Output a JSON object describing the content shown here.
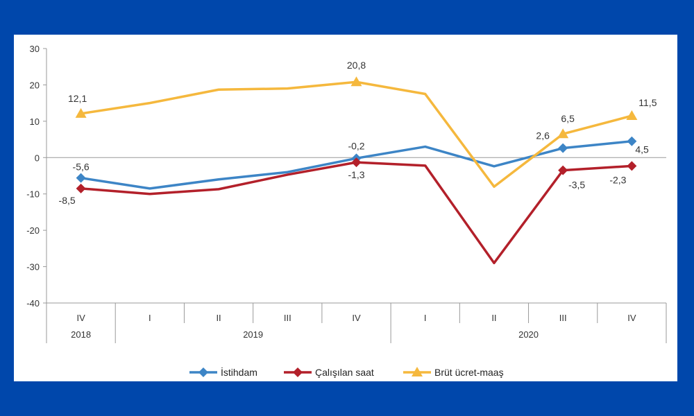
{
  "chart_data": {
    "type": "line",
    "categories": [
      "IV",
      "I",
      "II",
      "III",
      "IV",
      "I",
      "II",
      "III",
      "IV"
    ],
    "years": [
      {
        "label": "2018",
        "span": [
          0,
          0
        ]
      },
      {
        "label": "2019",
        "span": [
          1,
          4
        ]
      },
      {
        "label": "2020",
        "span": [
          5,
          8
        ]
      }
    ],
    "ylim": [
      -40,
      30
    ],
    "yticks": [
      "30",
      "20",
      "10",
      "0",
      "-10",
      "-20",
      "-30",
      "-40"
    ],
    "ytick_values": [
      30,
      20,
      10,
      0,
      -10,
      -20,
      -30,
      -40
    ],
    "grid": false,
    "legend_position": "bottom",
    "series": [
      {
        "name": "İstihdam",
        "color": "#3d85c6",
        "marker": "diamond",
        "values": [
          -5.6,
          -8.5,
          -6.0,
          -4.0,
          -0.2,
          3.0,
          -2.4,
          2.6,
          4.5
        ],
        "labels": {
          "0": "-5,6",
          "4": "-0,2",
          "7": "2,6",
          "8": "4,5"
        }
      },
      {
        "name": "Çalışılan saat",
        "color": "#b3202a",
        "marker": "diamond",
        "values": [
          -8.5,
          -10.0,
          -8.7,
          -4.7,
          -1.3,
          -2.2,
          -29.0,
          -3.5,
          -2.3
        ],
        "labels": {
          "0": "-8,5",
          "4": "-1,3",
          "7": "-3,5",
          "8": "-2,3"
        }
      },
      {
        "name": "Brüt ücret-maaş",
        "color": "#f5b83d",
        "marker": "triangle",
        "values": [
          12.1,
          15.0,
          18.7,
          19.0,
          20.8,
          17.5,
          -8.0,
          6.5,
          11.5
        ],
        "labels": {
          "0": "12,1",
          "4": "20,8",
          "7": "6,5",
          "8": "11,5"
        }
      }
    ]
  }
}
